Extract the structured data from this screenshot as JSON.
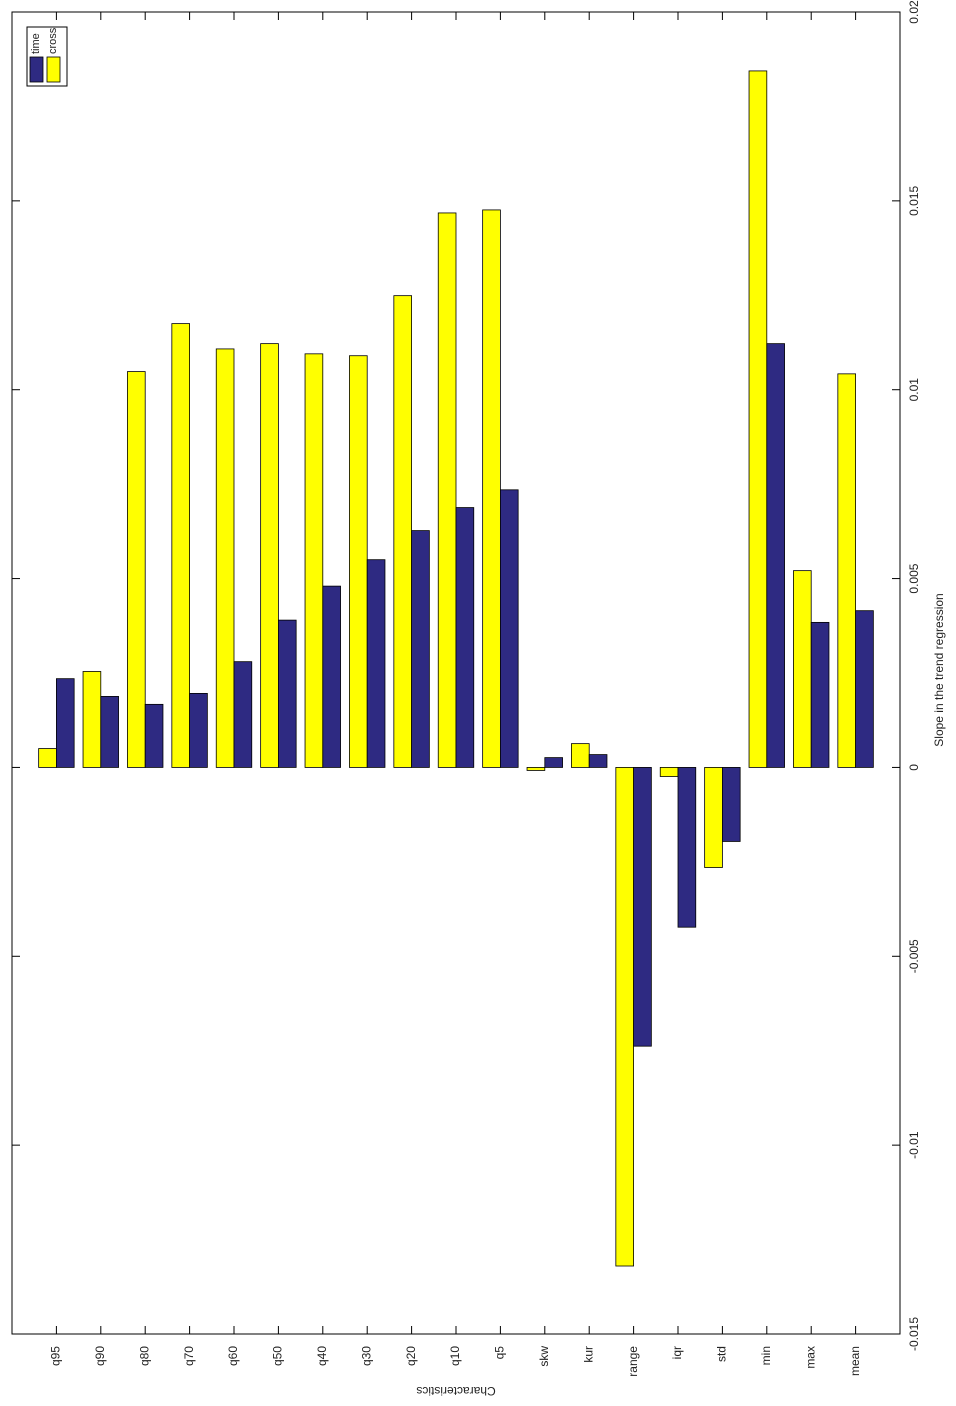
{
  "chart_data": {
    "type": "bar",
    "xlabel": "Characteristics",
    "ylabel": "Slope in the trend regression",
    "categories": [
      "q95",
      "q90",
      "q80",
      "q70",
      "q60",
      "q50",
      "q40",
      "q30",
      "q20",
      "q10",
      "q5",
      "skw",
      "kur",
      "range",
      "iqr",
      "std",
      "min",
      "max",
      "mean"
    ],
    "series": [
      {
        "name": "time",
        "color": "#2e2a82",
        "values": [
          0.00235,
          0.00188,
          0.00167,
          0.00196,
          0.0028,
          0.0039,
          0.0048,
          0.0055,
          0.00627,
          0.00688,
          0.00735,
          0.00026,
          0.00034,
          -0.00738,
          -0.00423,
          -0.00196,
          0.01122,
          0.00384,
          0.00415
        ]
      },
      {
        "name": "cross",
        "color": "#ffff00",
        "values": [
          0.0005,
          0.00254,
          0.01048,
          0.01175,
          0.01108,
          0.01122,
          0.01095,
          0.0109,
          0.01249,
          0.01468,
          0.01476,
          -8e-05,
          0.00063,
          -0.0132,
          -0.00024,
          -0.00265,
          0.01844,
          0.00521,
          0.01042
        ]
      }
    ],
    "ylim": [
      -0.015,
      0.02
    ],
    "yticks": [
      -0.015,
      -0.01,
      -0.005,
      0,
      0.005,
      0.01,
      0.015,
      0.02
    ]
  }
}
